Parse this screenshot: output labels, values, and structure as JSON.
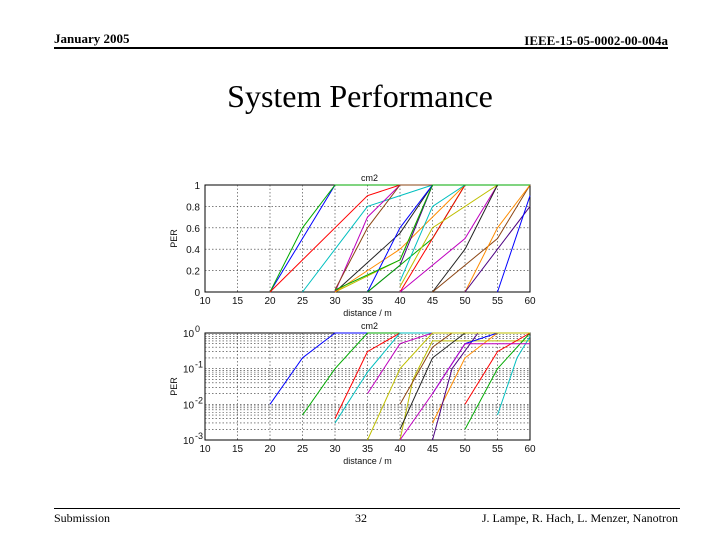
{
  "header": {
    "date": "January 2005",
    "doc_id": "IEEE-15-05-0002-00-004a"
  },
  "title": "System Performance",
  "footer": {
    "left": "Submission",
    "page": "32",
    "authors": "J. Lampe, R. Hach, L. Menzer, Nanotron"
  },
  "chart_data": [
    {
      "type": "line",
      "title": "cm2",
      "xlabel": "distance / m",
      "ylabel": "PER",
      "xlim": [
        10,
        60
      ],
      "ylim": [
        0,
        1
      ],
      "xticks": [
        "10",
        "15",
        "20",
        "25",
        "30",
        "35",
        "40",
        "45",
        "50",
        "55",
        "60"
      ],
      "yticks": [
        "0",
        "0.2",
        "0.4",
        "0.6",
        "0.8",
        "1"
      ],
      "grid": true,
      "colors": [
        "#0000ff",
        "#00aa00",
        "#ff0000",
        "#00bfbf",
        "#bf00bf",
        "#bfbf00",
        "#222222",
        "#8b4513",
        "#ff8c00",
        "#4b0082"
      ],
      "series": [
        {
          "x": [
            20,
            30,
            35
          ],
          "values": [
            0,
            1,
            1
          ]
        },
        {
          "x": [
            20,
            25,
            30
          ],
          "values": [
            0,
            0.6,
            1
          ]
        },
        {
          "x": [
            20,
            35,
            40
          ],
          "values": [
            0,
            0.9,
            1
          ]
        },
        {
          "x": [
            25,
            35,
            45
          ],
          "values": [
            0,
            0.8,
            1
          ]
        },
        {
          "x": [
            30,
            35,
            40
          ],
          "values": [
            0,
            0.7,
            1
          ]
        },
        {
          "x": [
            30,
            40,
            45
          ],
          "values": [
            0,
            0.3,
            1
          ]
        },
        {
          "x": [
            30,
            40,
            45
          ],
          "values": [
            0,
            0.55,
            1
          ]
        },
        {
          "x": [
            30,
            35,
            40
          ],
          "values": [
            0.02,
            0.6,
            1
          ]
        },
        {
          "x": [
            30,
            40,
            50
          ],
          "values": [
            0,
            0.4,
            1
          ]
        },
        {
          "x": [
            35,
            40,
            45
          ],
          "values": [
            0,
            0.25,
            1
          ]
        },
        {
          "x": [
            35,
            40,
            45
          ],
          "values": [
            0,
            0.6,
            1
          ]
        },
        {
          "x": [
            35,
            45,
            50
          ],
          "values": [
            0,
            0.5,
            1
          ]
        },
        {
          "x": [
            40,
            45,
            50
          ],
          "values": [
            0,
            0.5,
            1
          ]
        },
        {
          "x": [
            40,
            45,
            50
          ],
          "values": [
            0.1,
            0.8,
            1
          ]
        },
        {
          "x": [
            40,
            50,
            55
          ],
          "values": [
            0,
            0.5,
            1
          ]
        },
        {
          "x": [
            40,
            45,
            55
          ],
          "values": [
            0.05,
            0.6,
            1
          ]
        },
        {
          "x": [
            45,
            50,
            55
          ],
          "values": [
            0,
            0.4,
            1
          ]
        },
        {
          "x": [
            45,
            55,
            60
          ],
          "values": [
            0,
            0.5,
            1
          ]
        },
        {
          "x": [
            50,
            55,
            60
          ],
          "values": [
            0,
            0.6,
            1
          ]
        },
        {
          "x": [
            50,
            60
          ],
          "values": [
            0,
            0.8
          ]
        },
        {
          "x": [
            55,
            60
          ],
          "values": [
            0,
            0.9
          ]
        },
        {
          "x": [
            30,
            40,
            45
          ],
          "values": [
            0.02,
            0.3,
            1
          ]
        }
      ]
    },
    {
      "type": "line",
      "title": "cm2",
      "xlabel": "distance / m",
      "ylabel": "PER",
      "xlim": [
        10,
        60
      ],
      "ylim": [
        0.001,
        1
      ],
      "yscale": "log",
      "xticks": [
        "10",
        "15",
        "20",
        "25",
        "30",
        "35",
        "40",
        "45",
        "50",
        "55",
        "60"
      ],
      "yticks": [
        "10",
        "10",
        "10",
        "10"
      ],
      "yticks_exp": [
        "-3",
        "-2",
        "-1",
        "0"
      ],
      "grid": true,
      "colors": [
        "#0000ff",
        "#00aa00",
        "#ff0000",
        "#00bfbf",
        "#bf00bf",
        "#bfbf00",
        "#222222",
        "#8b4513",
        "#ff8c00",
        "#4b0082"
      ],
      "series": [
        {
          "x": [
            20,
            25,
            30
          ],
          "values": [
            0.01,
            0.2,
            1
          ]
        },
        {
          "x": [
            25,
            30,
            35
          ],
          "values": [
            0.005,
            0.1,
            1
          ]
        },
        {
          "x": [
            30,
            35,
            40
          ],
          "values": [
            0.004,
            0.3,
            1
          ]
        },
        {
          "x": [
            30,
            35,
            40
          ],
          "values": [
            0.003,
            0.08,
            1
          ]
        },
        {
          "x": [
            35,
            40,
            45
          ],
          "values": [
            0.02,
            0.5,
            1
          ]
        },
        {
          "x": [
            40,
            42,
            45
          ],
          "values": [
            0.001,
            0.05,
            0.6
          ]
        },
        {
          "x": [
            40,
            45,
            50
          ],
          "values": [
            0.002,
            0.2,
            1
          ]
        },
        {
          "x": [
            40,
            45,
            48
          ],
          "values": [
            0.01,
            0.4,
            1
          ]
        },
        {
          "x": [
            45,
            50,
            55
          ],
          "values": [
            0.003,
            0.2,
            1
          ]
        },
        {
          "x": [
            45,
            48,
            52
          ],
          "values": [
            0.001,
            0.1,
            1
          ]
        },
        {
          "x": [
            45,
            50,
            55
          ],
          "values": [
            0.02,
            0.5,
            1
          ]
        },
        {
          "x": [
            50,
            55,
            60
          ],
          "values": [
            0.002,
            0.1,
            1
          ]
        },
        {
          "x": [
            50,
            55,
            60
          ],
          "values": [
            0.01,
            0.3,
            1
          ]
        },
        {
          "x": [
            55,
            58,
            60
          ],
          "values": [
            0.005,
            0.2,
            0.8
          ]
        },
        {
          "x": [
            40,
            45,
            50
          ],
          "values": [
            0.001,
            0.02,
            0.5
          ]
        },
        {
          "x": [
            35,
            40,
            45
          ],
          "values": [
            0.001,
            0.1,
            1
          ]
        }
      ]
    }
  ]
}
